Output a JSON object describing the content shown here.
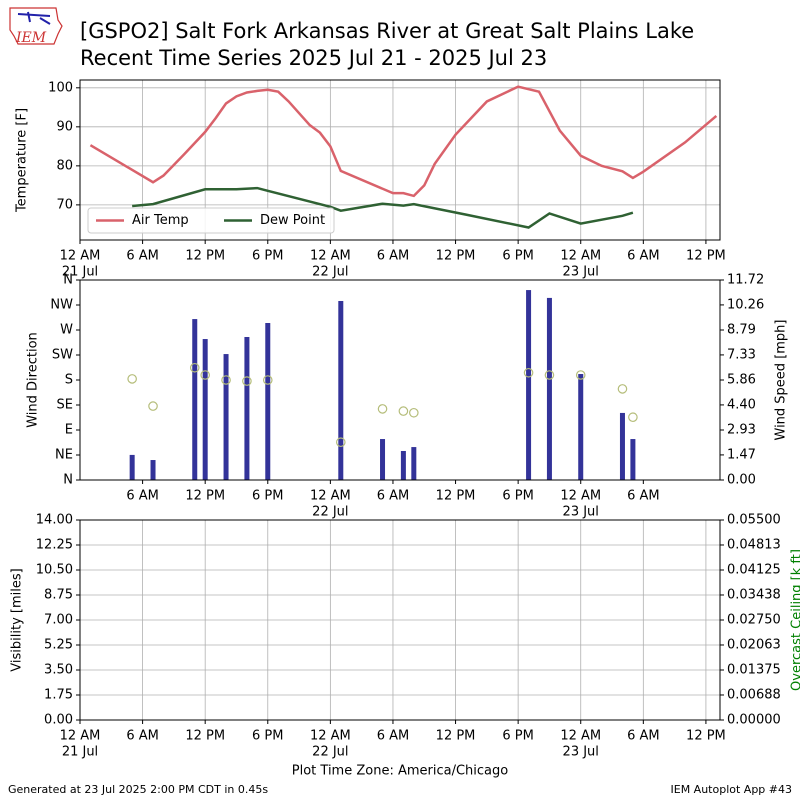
{
  "header": {
    "title_line1": "[GSPO2] Salt Fork Arkansas River at Great Salt Plains Lake",
    "title_line2": "Recent Time Series 2025 Jul 21 - 2025 Jul 23",
    "logo_text": "IEM"
  },
  "xlabel": "Plot Time Zone: America/Chicago",
  "footer_left": "Generated at 23 Jul 2025 2:00 PM CDT in 0.45s",
  "footer_right": "IEM Autoplot App #43",
  "chart_data": [
    {
      "type": "line",
      "ylabel": "Temperature [F]",
      "grid": true,
      "legend": "lower left",
      "xlim": [
        "2025-07-21 00:00",
        "2025-07-23 13:21"
      ],
      "ylim": [
        61,
        102
      ],
      "yticks": [
        70,
        80,
        90,
        100
      ],
      "xticks": [
        {
          "value": "2025-07-21 00:00",
          "label": "12 AM",
          "date": "21 Jul"
        },
        {
          "value": "2025-07-21 06:00",
          "label": "6 AM"
        },
        {
          "value": "2025-07-21 12:00",
          "label": "12 PM"
        },
        {
          "value": "2025-07-21 18:00",
          "label": "6 PM"
        },
        {
          "value": "2025-07-22 00:00",
          "label": "12 AM",
          "date": "22 Jul"
        },
        {
          "value": "2025-07-22 06:00",
          "label": "6 AM"
        },
        {
          "value": "2025-07-22 12:00",
          "label": "12 PM"
        },
        {
          "value": "2025-07-22 18:00",
          "label": "6 PM"
        },
        {
          "value": "2025-07-23 00:00",
          "label": "12 AM",
          "date": "23 Jul"
        },
        {
          "value": "2025-07-23 06:00",
          "label": "6 AM"
        },
        {
          "value": "2025-07-23 12:00",
          "label": "12 PM"
        }
      ],
      "series": [
        {
          "name": "Air Temp",
          "color": "#d9626b",
          "style": "line",
          "x": [
            "2025-07-21 01:00",
            "2025-07-21 07:00",
            "2025-07-21 08:00",
            "2025-07-21 10:00",
            "2025-07-21 12:00",
            "2025-07-21 13:00",
            "2025-07-21 14:00",
            "2025-07-21 15:00",
            "2025-07-21 16:00",
            "2025-07-21 17:00",
            "2025-07-21 18:00",
            "2025-07-21 19:00",
            "2025-07-21 20:00",
            "2025-07-21 22:00",
            "2025-07-21 23:00",
            "2025-07-22 00:00",
            "2025-07-22 01:00",
            "2025-07-22 06:00",
            "2025-07-22 07:00",
            "2025-07-22 08:00",
            "2025-07-22 09:00",
            "2025-07-22 10:00",
            "2025-07-22 12:00",
            "2025-07-22 15:00",
            "2025-07-22 18:00",
            "2025-07-22 20:00",
            "2025-07-22 22:00",
            "2025-07-23 00:00",
            "2025-07-23 02:00",
            "2025-07-23 04:00",
            "2025-07-23 05:00",
            "2025-07-23 06:00",
            "2025-07-23 10:00",
            "2025-07-23 13:00"
          ],
          "values": [
            85.3,
            75.8,
            77.5,
            83,
            88.7,
            92.2,
            96,
            97.8,
            98.8,
            99.2,
            99.5,
            99,
            96.5,
            90.5,
            88.5,
            85,
            78.7,
            73,
            73,
            72.3,
            75,
            80.5,
            88,
            96.5,
            100.3,
            99,
            89,
            82.6,
            80,
            78.6,
            76.9,
            78.5,
            86,
            92.8
          ]
        },
        {
          "name": "Dew Point",
          "color": "#2f6133",
          "style": "line",
          "x": [
            "2025-07-21 05:00",
            "2025-07-21 07:00",
            "2025-07-21 12:00",
            "2025-07-21 15:00",
            "2025-07-21 17:00",
            "2025-07-21 18:00",
            "2025-07-22 00:00",
            "2025-07-22 01:00",
            "2025-07-22 05:00",
            "2025-07-22 07:00",
            "2025-07-22 08:00",
            "2025-07-22 13:00",
            "2025-07-22 19:00",
            "2025-07-22 21:00",
            "2025-07-23 00:00",
            "2025-07-23 04:00",
            "2025-07-23 05:00"
          ],
          "values": [
            69.7,
            70.2,
            74,
            74,
            74.3,
            73.6,
            69.5,
            68.5,
            70.3,
            69.8,
            70.2,
            67.5,
            64.2,
            67.8,
            65.2,
            67.2,
            68
          ]
        }
      ]
    },
    {
      "type": "bar",
      "ylabel": "Wind Direction",
      "y2label": "Wind Speed [mph]",
      "grid": false,
      "xlim": [
        "2025-07-21 00:00",
        "2025-07-23 13:21"
      ],
      "ylim": [
        0,
        360
      ],
      "y2lim": [
        0,
        11.72
      ],
      "yticks": [
        {
          "value": 0,
          "label": "N"
        },
        {
          "value": 45,
          "label": "NE"
        },
        {
          "value": 90,
          "label": "E"
        },
        {
          "value": 135,
          "label": "SE"
        },
        {
          "value": 180,
          "label": "S"
        },
        {
          "value": 225,
          "label": "SW"
        },
        {
          "value": 270,
          "label": "W"
        },
        {
          "value": 315,
          "label": "NW"
        },
        {
          "value": 360,
          "label": "N"
        }
      ],
      "y2ticks": [
        {
          "value": 0,
          "label": "0.00"
        },
        {
          "value": 1.47,
          "label": "1.47"
        },
        {
          "value": 2.93,
          "label": "2.93"
        },
        {
          "value": 4.4,
          "label": "4.40"
        },
        {
          "value": 5.86,
          "label": "5.86"
        },
        {
          "value": 7.33,
          "label": "7.33"
        },
        {
          "value": 8.79,
          "label": "8.79"
        },
        {
          "value": 10.26,
          "label": "10.26"
        },
        {
          "value": 11.72,
          "label": "11.72"
        }
      ],
      "xticks": [
        {
          "value": "2025-07-21 06:00",
          "label": "6 AM"
        },
        {
          "value": "2025-07-21 12:00",
          "label": "12 PM"
        },
        {
          "value": "2025-07-21 18:00",
          "label": "6 PM"
        },
        {
          "value": "2025-07-22 00:00",
          "label": "12 AM",
          "date": "22 Jul"
        },
        {
          "value": "2025-07-22 06:00",
          "label": "6 AM"
        },
        {
          "value": "2025-07-22 12:00",
          "label": "12 PM"
        },
        {
          "value": "2025-07-22 18:00",
          "label": "6 PM"
        },
        {
          "value": "2025-07-23 00:00",
          "label": "12 AM",
          "date": "23 Jul"
        },
        {
          "value": "2025-07-23 06:00",
          "label": "6 AM"
        }
      ],
      "series": [
        {
          "color": "#333399",
          "style": "bar",
          "axis": "y2",
          "x": [
            "2025-07-21 05:00",
            "2025-07-21 07:00",
            "2025-07-21 11:00",
            "2025-07-21 12:00",
            "2025-07-21 14:00",
            "2025-07-21 16:00",
            "2025-07-21 18:00",
            "2025-07-22 01:00",
            "2025-07-22 05:00",
            "2025-07-22 07:00",
            "2025-07-22 08:00",
            "2025-07-22 19:00",
            "2025-07-22 21:00",
            "2025-07-23 00:00",
            "2025-07-23 04:00",
            "2025-07-23 05:00"
          ],
          "values": [
            1.47,
            1.17,
            9.43,
            8.26,
            7.38,
            8.38,
            9.2,
            10.49,
            2.4,
            1.7,
            1.93,
            11.13,
            10.67,
            6.21,
            3.93,
            2.4
          ]
        },
        {
          "color": "#b5bd7a",
          "style": "circle",
          "x": [
            "2025-07-21 05:00",
            "2025-07-21 07:00",
            "2025-07-21 11:00",
            "2025-07-21 12:00",
            "2025-07-21 14:00",
            "2025-07-21 16:00",
            "2025-07-21 18:00",
            "2025-07-22 01:00",
            "2025-07-22 05:00",
            "2025-07-22 07:00",
            "2025-07-22 08:00",
            "2025-07-22 19:00",
            "2025-07-22 21:00",
            "2025-07-23 00:00",
            "2025-07-23 04:00",
            "2025-07-23 05:00"
          ],
          "values": [
            182,
            133,
            202,
            189,
            180,
            178,
            180,
            68,
            128,
            124,
            121,
            193,
            189,
            189,
            164,
            113
          ]
        }
      ]
    },
    {
      "type": "line",
      "ylabel": "Visibility [miles]",
      "y2label": "Overcast Ceiling [k ft]",
      "y2label_color": "#008000",
      "grid": true,
      "xlim": [
        "2025-07-21 00:00",
        "2025-07-23 13:21"
      ],
      "ylim": [
        0,
        14
      ],
      "y2lim": [
        0,
        0.055
      ],
      "yticks": [
        {
          "value": 0,
          "label": "0.00"
        },
        {
          "value": 1.75,
          "label": "1.75"
        },
        {
          "value": 3.5,
          "label": "3.50"
        },
        {
          "value": 5.25,
          "label": "5.25"
        },
        {
          "value": 7,
          "label": "7.00"
        },
        {
          "value": 8.75,
          "label": "8.75"
        },
        {
          "value": 10.5,
          "label": "10.50"
        },
        {
          "value": 12.25,
          "label": "12.25"
        },
        {
          "value": 14,
          "label": "14.00"
        }
      ],
      "y2ticks": [
        {
          "value": 0,
          "label": "0.00000"
        },
        {
          "value": 0.00688,
          "label": "0.00688"
        },
        {
          "value": 0.01375,
          "label": "0.01375"
        },
        {
          "value": 0.02063,
          "label": "0.02063"
        },
        {
          "value": 0.0275,
          "label": "0.02750"
        },
        {
          "value": 0.03438,
          "label": "0.03438"
        },
        {
          "value": 0.04125,
          "label": "0.04125"
        },
        {
          "value": 0.04813,
          "label": "0.04813"
        },
        {
          "value": 0.055,
          "label": "0.05500"
        }
      ],
      "xticks": [
        {
          "value": "2025-07-21 00:00",
          "label": "12 AM",
          "date": "21 Jul"
        },
        {
          "value": "2025-07-21 06:00",
          "label": "6 AM"
        },
        {
          "value": "2025-07-21 12:00",
          "label": "12 PM"
        },
        {
          "value": "2025-07-21 18:00",
          "label": "6 PM"
        },
        {
          "value": "2025-07-22 00:00",
          "label": "12 AM",
          "date": "22 Jul"
        },
        {
          "value": "2025-07-22 06:00",
          "label": "6 AM"
        },
        {
          "value": "2025-07-22 12:00",
          "label": "12 PM"
        },
        {
          "value": "2025-07-22 18:00",
          "label": "6 PM"
        },
        {
          "value": "2025-07-23 00:00",
          "label": "12 AM",
          "date": "23 Jul"
        },
        {
          "value": "2025-07-23 06:00",
          "label": "6 AM"
        },
        {
          "value": "2025-07-23 12:00",
          "label": "12 PM"
        }
      ],
      "series": []
    }
  ]
}
